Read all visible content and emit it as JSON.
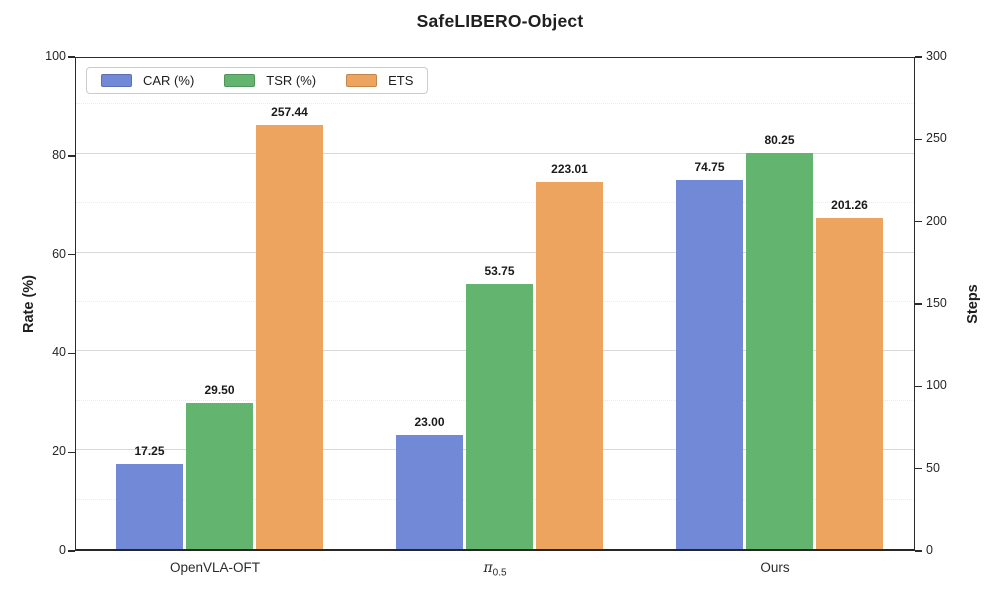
{
  "chart_data": {
    "type": "bar",
    "title": "SafeLIBERO-Object",
    "legend_position": "upper left",
    "grid": {
      "major": "solid",
      "minor": "dotted"
    },
    "categories": [
      {
        "label": "OpenVLA-OFT",
        "sub": "",
        "italic": false
      },
      {
        "label": "π",
        "sub": "0.5",
        "italic": true
      },
      {
        "label": "Ours",
        "sub": "",
        "italic": false
      }
    ],
    "series": [
      {
        "name": "CAR (%)",
        "color": "#7289d8",
        "axis": "left",
        "values": [
          17.25,
          23.0,
          74.75
        ],
        "labels": [
          "17.25",
          "23.00",
          "74.75"
        ]
      },
      {
        "name": "TSR (%)",
        "color": "#62b46f",
        "axis": "left",
        "values": [
          29.5,
          53.75,
          80.25
        ],
        "labels": [
          "29.50",
          "53.75",
          "80.25"
        ]
      },
      {
        "name": "ETS",
        "color": "#eca45f",
        "axis": "right",
        "values": [
          257.44,
          223.01,
          201.26
        ],
        "labels": [
          "257.44",
          "223.01",
          "201.26"
        ]
      }
    ],
    "left_axis": {
      "label": "Rate (%)",
      "min": 0,
      "max": 100,
      "ticks": [
        0,
        20,
        40,
        60,
        80,
        100
      ],
      "minor_step": 10
    },
    "right_axis": {
      "label": "Steps",
      "min": 0,
      "max": 300,
      "ticks": [
        0,
        50,
        100,
        150,
        200,
        250,
        300
      ]
    }
  }
}
